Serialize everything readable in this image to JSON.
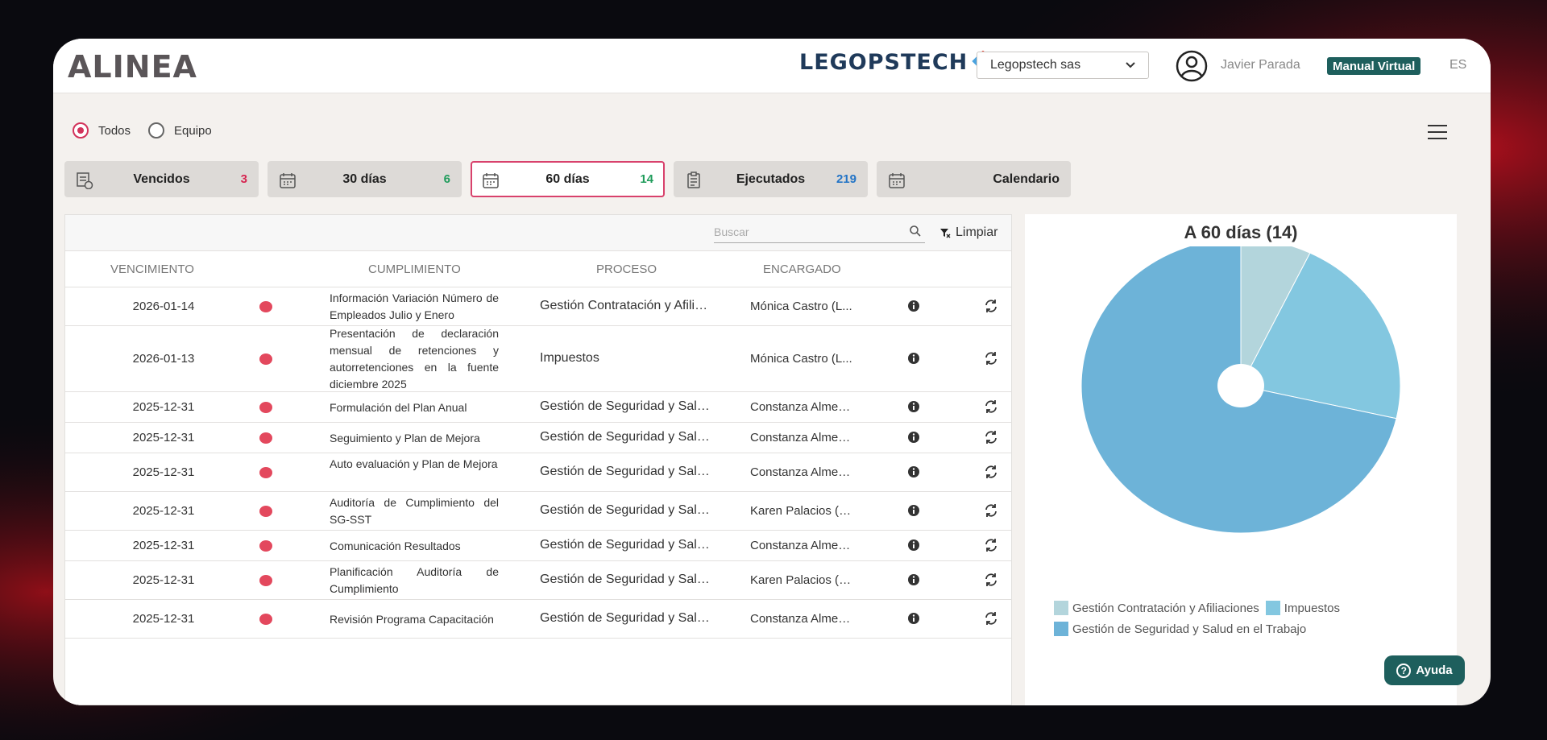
{
  "header": {
    "logo_text": "ALINEA",
    "brand_text": "LEGOPSTECH",
    "company_select": "Legopstech sas",
    "user_name": "Javier Parada",
    "manual_label": "Manual Virtual",
    "lang": "ES"
  },
  "view_toggle": {
    "options": [
      {
        "label": "Todos",
        "selected": true
      },
      {
        "label": "Equipo",
        "selected": false
      }
    ]
  },
  "filters": [
    {
      "label": "Vencidos",
      "count": "3",
      "count_color": "#d6234f",
      "icon": "overdue-icon",
      "active": false
    },
    {
      "label": "30 días",
      "count": "6",
      "count_color": "#1f9c5b",
      "icon": "calendar-icon",
      "active": false
    },
    {
      "label": "60 días",
      "count": "14",
      "count_color": "#1f9c5b",
      "icon": "calendar-icon",
      "active": true
    },
    {
      "label": "Ejecutados",
      "count": "219",
      "count_color": "#2374c6",
      "icon": "clipboard-icon",
      "active": false
    },
    {
      "label": "Calendario",
      "count": "",
      "count_color": "",
      "icon": "calendar-icon",
      "active": false
    }
  ],
  "table": {
    "search_placeholder": "Buscar",
    "clear_label": "Limpiar",
    "columns": [
      "VENCIMIENTO",
      "CUMPLIMIENTO",
      "PROCESO",
      "ENCARGADO"
    ],
    "rows": [
      {
        "date": "2026-01-14",
        "task": "Información Variación Número de Empleados Julio y Enero",
        "process": "Gestión Contratación y Afiliaciones",
        "owner": "Mónica Castro (L..."
      },
      {
        "date": "2026-01-13",
        "task": "Presentación de declaración mensual de retenciones y autorretenciones en la fuente diciembre 2025",
        "process": "Impuestos",
        "owner": "Mónica Castro (L..."
      },
      {
        "date": "2025-12-31",
        "task": "Formulación del Plan Anual",
        "process": "Gestión de Seguridad y Salud en el Trabajo",
        "owner": "Constanza Almec..."
      },
      {
        "date": "2025-12-31",
        "task": "Seguimiento y Plan de Mejora",
        "process": "Gestión de Seguridad y Salud en el Trabajo",
        "owner": "Constanza Almec..."
      },
      {
        "date": "2025-12-31",
        "task": "Auto evaluación y Plan de Mejora",
        "process": "Gestión de Seguridad y Salud en el Trabajo",
        "owner": "Constanza Almec..."
      },
      {
        "date": "2025-12-31",
        "task": "Auditoría de Cumplimiento del SG-SST",
        "process": "Gestión de Seguridad y Salud en el Trabajo",
        "owner": "Karen Palacios (L..."
      },
      {
        "date": "2025-12-31",
        "task": "Comunicación Resultados",
        "process": "Gestión de Seguridad y Salud en el Trabajo",
        "owner": "Constanza Almec..."
      },
      {
        "date": "2025-12-31",
        "task": "Planificación Auditoría de Cumplimiento",
        "process": "Gestión de Seguridad y Salud en el Trabajo",
        "owner": "Karen Palacios (L..."
      },
      {
        "date": "2025-12-31",
        "task": "Revisión Programa Capacitación",
        "process": "Gestión de Seguridad y Salud en el Trabajo",
        "owner": "Constanza Almec..."
      }
    ]
  },
  "chart_data": {
    "type": "pie",
    "title": "A 60 días (14)",
    "categories": [
      "Gestión Contratación y Afiliaciones",
      "Impuestos",
      "Gestión de Seguridad y Salud en el Trabajo"
    ],
    "values": [
      1,
      3,
      10
    ],
    "colors": [
      "#b3d5dc",
      "#83c7e0",
      "#6db3d8"
    ],
    "legend_position": "bottom"
  },
  "help_label": "Ayuda"
}
